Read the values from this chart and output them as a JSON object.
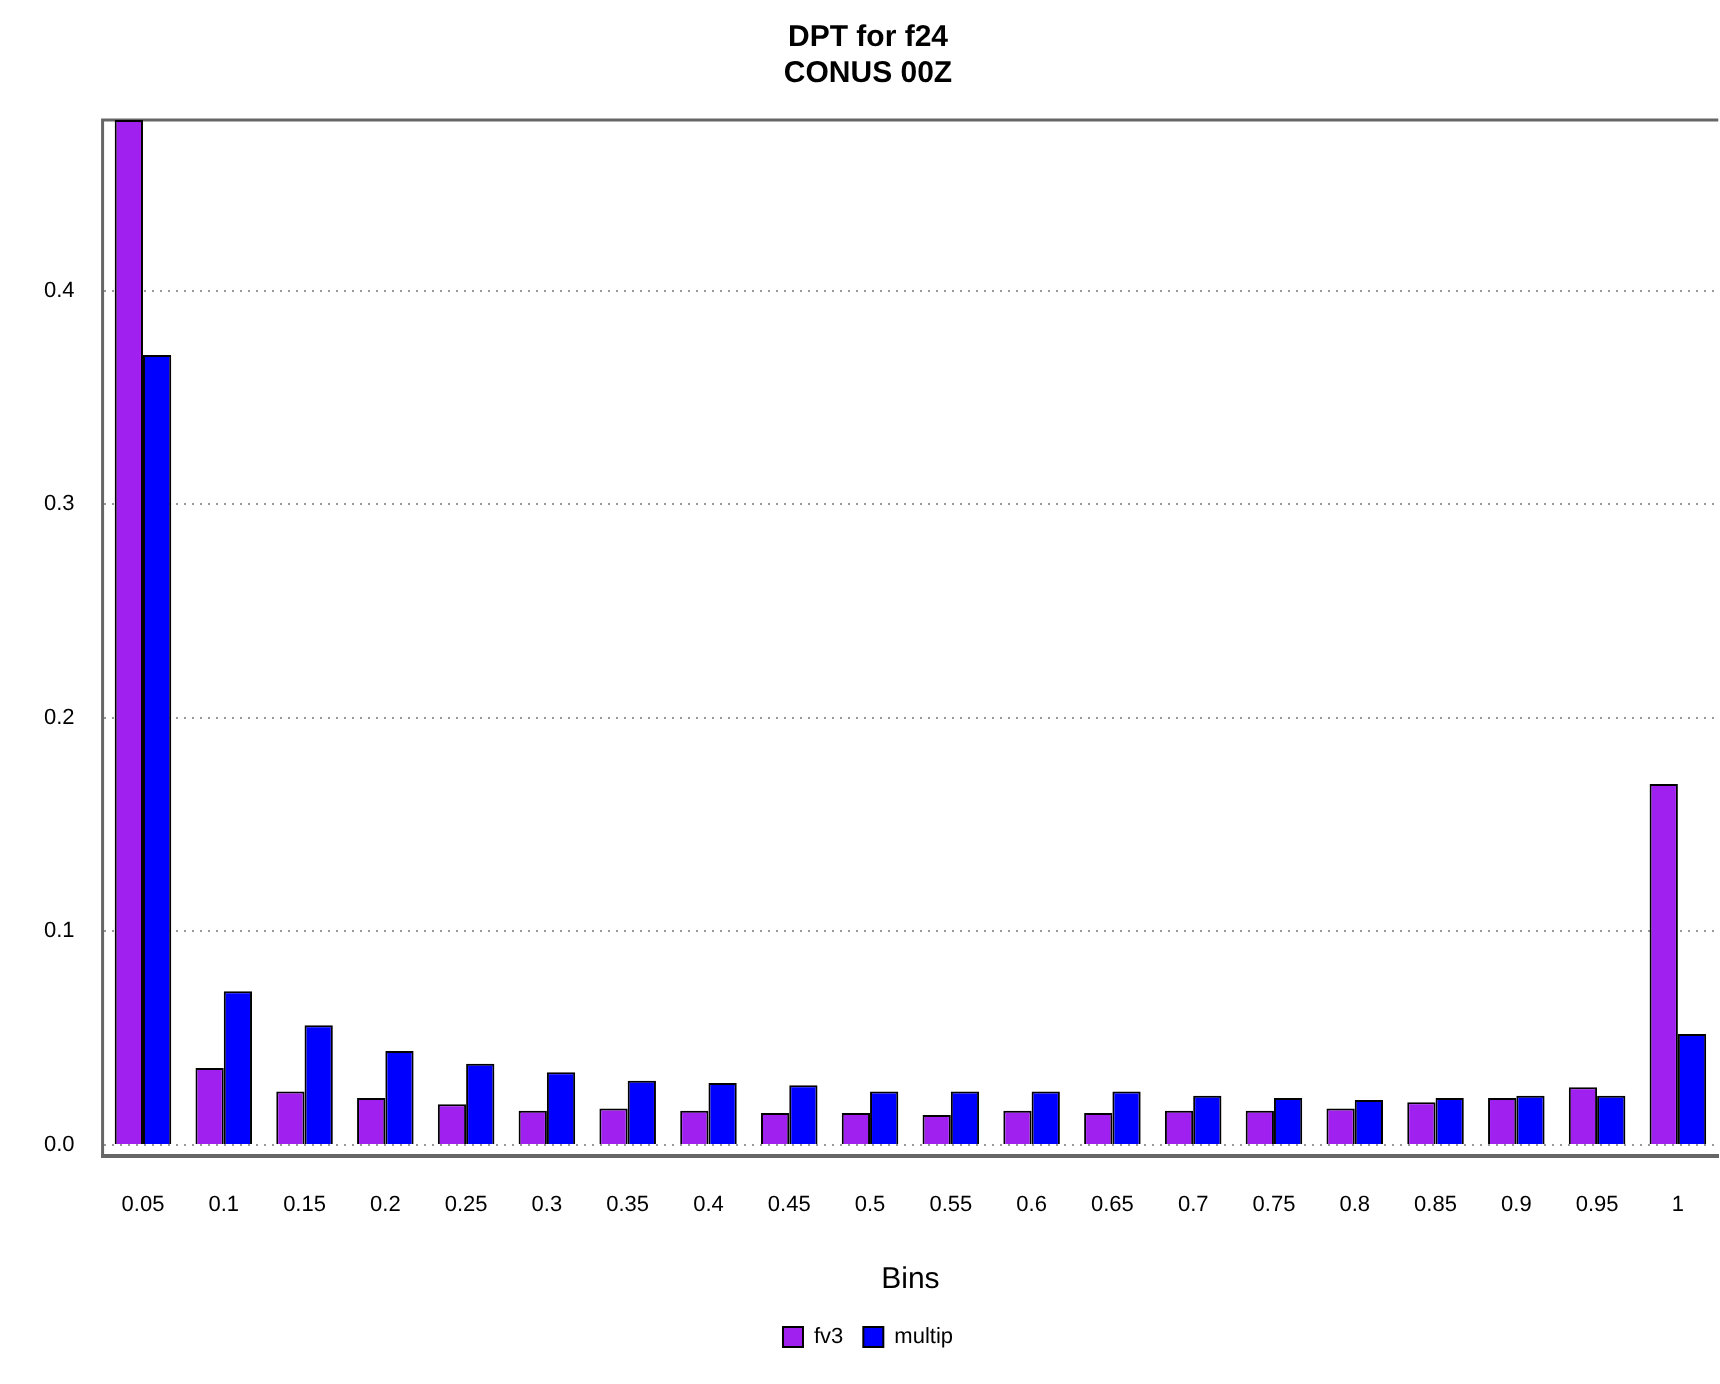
{
  "chart_data": {
    "type": "bar",
    "title": "DPT for f24",
    "subtitle": "CONUS 00Z",
    "xlabel": "Bins",
    "categories": [
      "0.05",
      "0.1",
      "0.15",
      "0.2",
      "0.25",
      "0.3",
      "0.35",
      "0.4",
      "0.45",
      "0.5",
      "0.55",
      "0.6",
      "0.65",
      "0.7",
      "0.75",
      "0.8",
      "0.85",
      "0.9",
      "0.95",
      "1"
    ],
    "series": [
      {
        "name": "fv3",
        "color": "#a020f0",
        "values": [
          0.48,
          0.036,
          0.025,
          0.022,
          0.019,
          0.016,
          0.017,
          0.016,
          0.015,
          0.015,
          0.014,
          0.016,
          0.015,
          0.016,
          0.016,
          0.017,
          0.02,
          0.022,
          0.027,
          0.169
        ]
      },
      {
        "name": "multip",
        "color": "#0000ff",
        "values": [
          0.37,
          0.072,
          0.056,
          0.044,
          0.038,
          0.034,
          0.03,
          0.029,
          0.028,
          0.025,
          0.025,
          0.025,
          0.025,
          0.023,
          0.022,
          0.021,
          0.022,
          0.023,
          0.023,
          0.052
        ]
      }
    ],
    "ylim": [
      -0.005,
      0.48
    ],
    "yticks": [
      {
        "value": 0,
        "label": "0.0"
      },
      0.1,
      0.2,
      0.3,
      0.4
    ],
    "grid": "y",
    "legend": "bottom"
  }
}
